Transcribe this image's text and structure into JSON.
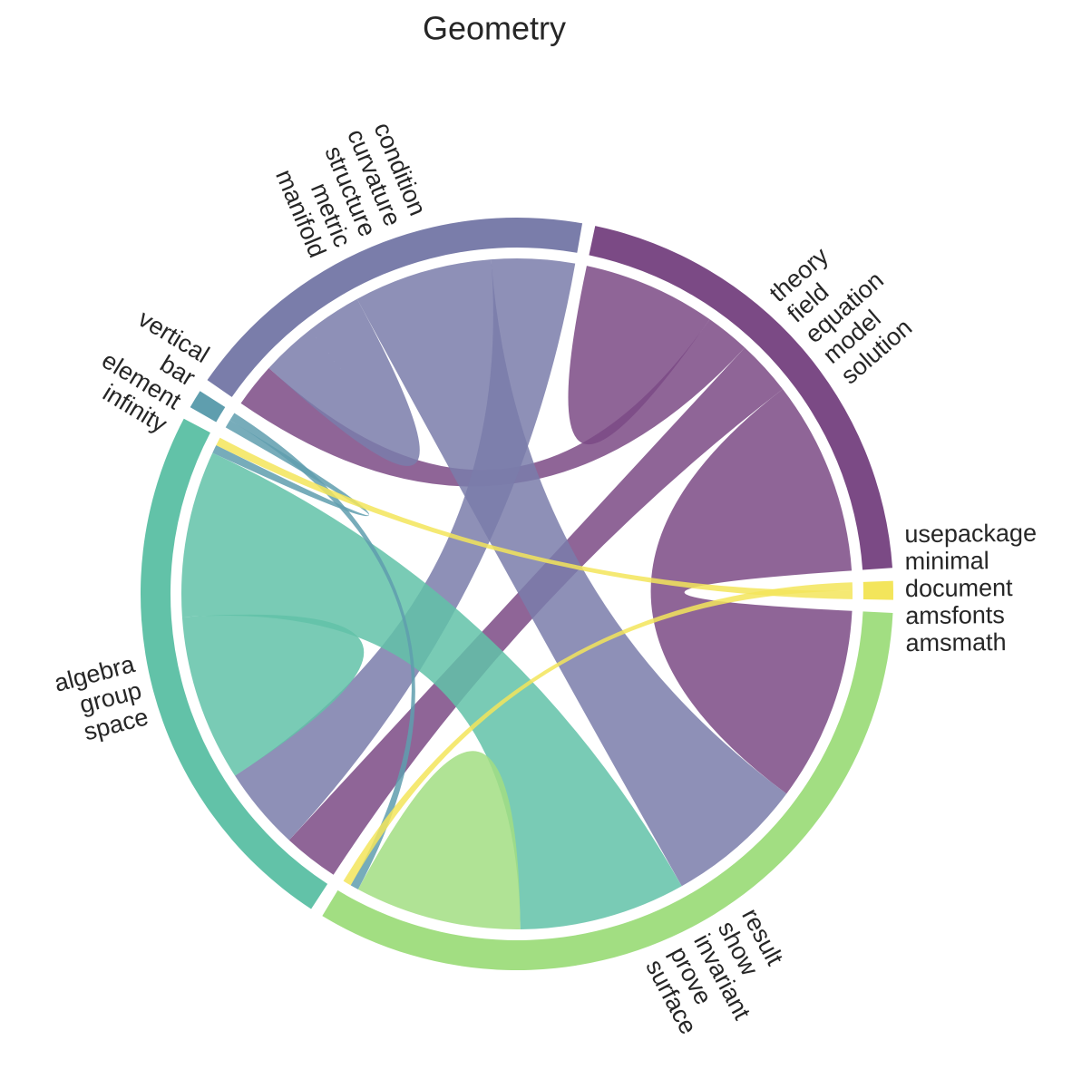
{
  "chart_data": {
    "type": "chord",
    "title": "Geometry",
    "nodes": [
      {
        "labels": [
          "theory",
          "field",
          "equation",
          "model",
          "solution"
        ],
        "color": "#7b4a85"
      },
      {
        "labels": [
          "usepackage",
          "minimal",
          "document",
          "amsfonts",
          "amsmath"
        ],
        "color": "#f3e55b"
      },
      {
        "labels": [
          "result",
          "show",
          "invariant",
          "prove",
          "surface"
        ],
        "color": "#a2de82"
      },
      {
        "labels": [
          "space",
          "group",
          "algebra"
        ],
        "color": "#62c2a8"
      },
      {
        "labels": [
          "infinity",
          "element",
          "bar",
          "vertical"
        ],
        "color": "#5f9eae"
      },
      {
        "labels": [
          "manifold",
          "metric",
          "structure",
          "curvature",
          "condition"
        ],
        "color": "#7a7daa"
      }
    ],
    "flows": [
      {
        "source": 0,
        "target": 0,
        "value": 12
      },
      {
        "source": 0,
        "target": 5,
        "value": 8
      },
      {
        "source": 0,
        "target": 3,
        "value": 10
      },
      {
        "source": 0,
        "target": 2,
        "value": 35
      },
      {
        "source": 5,
        "target": 5,
        "value": 10
      },
      {
        "source": 5,
        "target": 2,
        "value": 25
      },
      {
        "source": 5,
        "target": 3,
        "value": 15
      },
      {
        "source": 3,
        "target": 3,
        "value": 15
      },
      {
        "source": 3,
        "target": 2,
        "value": 30
      },
      {
        "source": 2,
        "target": 2,
        "value": 15
      },
      {
        "source": 4,
        "target": 3,
        "value": 1.5
      },
      {
        "source": 4,
        "target": 2,
        "value": 1.5
      },
      {
        "source": 1,
        "target": 2,
        "value": 1.5
      },
      {
        "source": 1,
        "target": 3,
        "value": 1.5
      }
    ]
  }
}
